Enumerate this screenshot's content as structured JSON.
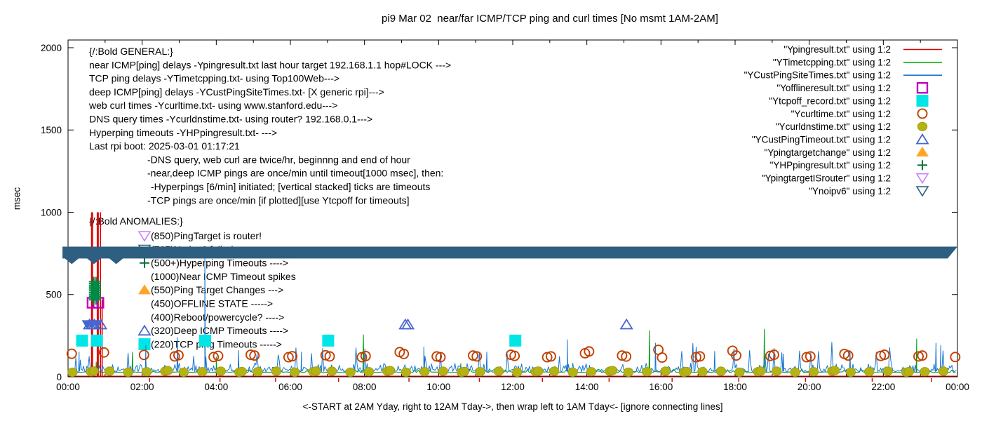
{
  "title": "pi9 Mar 02  near/far ICMP/TCP ping and curl times [No msmt 1AM-2AM]",
  "axes": {
    "ylabel": "msec",
    "xlabel": "<-START at 2AM Yday, right to 12AM Tday->, then wrap left to 1AM Tday<- [ignore connecting lines]",
    "yticks": [
      0,
      500,
      1000,
      1500,
      2000
    ],
    "xticks": [
      "00:00",
      "02:00",
      "04:00",
      "06:00",
      "08:00",
      "10:00",
      "12:00",
      "14:00",
      "16:00",
      "18:00",
      "20:00",
      "22:00",
      "00:00"
    ],
    "ylim": [
      0,
      2000
    ],
    "x_hours": [
      0,
      24
    ]
  },
  "legend": [
    {
      "label": "\"Ypingresult.txt\" using 1:2",
      "glyph": "line",
      "color": "#e00000"
    },
    {
      "label": "\"YTimetcpping.txt\" using 1:2",
      "glyph": "line",
      "color": "#00b400"
    },
    {
      "label": "\"YCustPingSiteTimes.txt\" using 1:2",
      "glyph": "line",
      "color": "#1874d2"
    },
    {
      "label": "\"Yofflineresult.txt\" using 1:2",
      "glyph": "square_open",
      "color": "#c000c0"
    },
    {
      "label": "\"Ytcpoff_record.txt\" using 1:2",
      "glyph": "square_fill",
      "color": "#00e5e5"
    },
    {
      "label": "\"Ycurltime.txt\" using 1:2",
      "glyph": "circle_open",
      "color": "#c04000"
    },
    {
      "label": "\"Ycurldnstime.txt\" using 1:2",
      "glyph": "circle_fill",
      "color": "#b3b314"
    },
    {
      "label": "\"YCustPingTimeout.txt\" using 1:2",
      "glyph": "tri_up_open",
      "color": "#4666d0"
    },
    {
      "label": "\"Ypingtargetchange\" using 1:2",
      "glyph": "tri_up_fill",
      "color": "#ffa526"
    },
    {
      "label": "\"YHPpingresult.txt\" using 1:2",
      "glyph": "plus",
      "color": "#007040"
    },
    {
      "label": "\"YpingtargetISrouter\" using 1:2",
      "glyph": "tri_down_open",
      "color": "#cc80ff"
    },
    {
      "label": "\"Ynoipv6\" using 1:2",
      "glyph": "tri_down_open",
      "color": "#2e5f80"
    }
  ],
  "annotations": {
    "general": [
      {
        "x": 127,
        "text": "{/:Bold GENERAL:}"
      },
      {
        "x": 127,
        "text": "near ICMP[ping] delays -Ypingresult.txt last hour target 192.168.1.1 hop#LOCK --->"
      },
      {
        "x": 127,
        "text": "TCP ping delays -YTimetcpping.txt- using Top100Web--->"
      },
      {
        "x": 127,
        "text": "deep ICMP[ping] delays -YCustPingSiteTimes.txt- [X generic rpi]--->"
      },
      {
        "x": 127,
        "text": "web curl times -Ycurltime.txt- using www.stanford.edu--->"
      },
      {
        "x": 127,
        "text": "DNS query times -Ycurldnstime.txt- using router? 192.168.0.1--->"
      },
      {
        "x": 127,
        "text": "Hyperping timeouts -YHPpingresult.txt- --->"
      },
      {
        "x": 127,
        "text": "Last rpi boot: 2025-03-01 01:17:21"
      },
      {
        "x": 210,
        "text": "-DNS query, web curl are twice/hr, beginnng and end of hour"
      },
      {
        "x": 210,
        "text": "-near,deep ICMP pings are once/min until timeout[1000 msec], then:"
      },
      {
        "x": 215,
        "text": "-Hyperpings [6/min] initiated; [vertical stacked] ticks are timeouts"
      },
      {
        "x": 210,
        "text": "-TCP pings are once/min [if plotted][use Ytcpoff for timeouts]"
      }
    ],
    "anomalies_header": "{/:Bold ANOMALIES:}",
    "anomalies": [
      {
        "marker": "tri_down_open",
        "color": "#cc80ff",
        "text": "(850)PingTarget is router!"
      },
      {
        "marker": "tri_down_open",
        "color": "#2e5f80",
        "text": "(765)No ipv6 failed --->",
        "occluded": true
      },
      {
        "marker": "plus",
        "color": "#007040",
        "text": "(500+)Hyperping Timeouts ---->"
      },
      {
        "marker": null,
        "color": null,
        "text": "(1000)Near ICMP Timeout spikes"
      },
      {
        "marker": "tri_up_fill",
        "color": "#ffa526",
        "text": "(550)Ping Target Changes --->"
      },
      {
        "marker": null,
        "color": null,
        "text": "(450)OFFLINE STATE ----->"
      },
      {
        "marker": null,
        "color": null,
        "text": "(400)Reboot/powercycle? ---->"
      },
      {
        "marker": "tri_up_open",
        "color": "#4666d0",
        "text": "(320)Deep ICMP Timeouts ---->"
      },
      {
        "marker": "square_fill",
        "color": "#00e5e5",
        "text": "(220)TCP ping Timeouts ----->"
      }
    ]
  },
  "chart_data": {
    "type": "line",
    "note": "time-series msec vs hour-of-day; noise traces regenerated from seeds; spikes/markers are measured points",
    "series": [
      {
        "name": "near_icmp_ping",
        "color": "#e00000",
        "baseline_msec": 4,
        "impulses_to_msec": [
          [
            0.635,
            1000
          ],
          [
            0.66,
            1000
          ],
          [
            0.79,
            1000
          ],
          [
            0.815,
            1000
          ],
          [
            0.875,
            1000
          ],
          [
            0.92,
            470
          ]
        ],
        "bottom_ticks_t": [
          2.2,
          4.1,
          5.6,
          7.3,
          9.2,
          11.1,
          12.8,
          14.6,
          16.3,
          18.1,
          19.9,
          21.7,
          23.3
        ]
      },
      {
        "name": "tcp_ping",
        "color": "#00a014",
        "baseline_msec": 26,
        "noise_seed": 7,
        "noise_step_h": 0.05,
        "spikes": [
          [
            0.76,
            90
          ],
          [
            1.74,
            150
          ],
          [
            4.0,
            120
          ],
          [
            7.97,
            255
          ],
          [
            10.6,
            80
          ],
          [
            15.69,
            280
          ],
          [
            18.79,
            290
          ],
          [
            22.9,
            230
          ]
        ]
      },
      {
        "name": "deep_icmp_ping",
        "color": "#1874d2",
        "baseline_msec": 32,
        "noise_seed": 42,
        "noise_step_h": 0.03,
        "spikes": [
          [
            0.3,
            150
          ],
          [
            2.1,
            190
          ],
          [
            2.95,
            240
          ],
          [
            3.69,
            757
          ],
          [
            4.6,
            160
          ],
          [
            6.3,
            150
          ],
          [
            9.6,
            180
          ],
          [
            11.3,
            150
          ],
          [
            13.47,
            225
          ],
          [
            15.85,
            205
          ],
          [
            17.45,
            155
          ],
          [
            19.3,
            140
          ],
          [
            21.1,
            160
          ],
          [
            23.42,
            205
          ],
          [
            23.55,
            190
          ]
        ]
      }
    ],
    "markers": {
      "curl_times_circles": {
        "color": "#c04000",
        "points": [
          [
            0.1,
            140
          ],
          [
            0.97,
            148
          ],
          [
            2.05,
            133
          ],
          [
            2.88,
            124
          ],
          [
            2.98,
            131
          ],
          [
            3.93,
            120
          ],
          [
            4.05,
            127
          ],
          [
            4.93,
            134
          ],
          [
            5.03,
            129
          ],
          [
            5.95,
            119
          ],
          [
            6.05,
            125
          ],
          [
            6.95,
            131
          ],
          [
            7.06,
            124
          ],
          [
            7.93,
            119
          ],
          [
            8.03,
            126
          ],
          [
            8.95,
            150
          ],
          [
            9.06,
            139
          ],
          [
            9.95,
            124
          ],
          [
            10.05,
            119
          ],
          [
            10.93,
            129
          ],
          [
            11.03,
            124
          ],
          [
            11.95,
            134
          ],
          [
            12.05,
            127
          ],
          [
            12.93,
            119
          ],
          [
            13.03,
            124
          ],
          [
            13.95,
            143
          ],
          [
            14.06,
            154
          ],
          [
            14.95,
            129
          ],
          [
            15.06,
            123
          ],
          [
            15.93,
            164
          ],
          [
            16.03,
            117
          ],
          [
            16.95,
            119
          ],
          [
            17.05,
            124
          ],
          [
            17.93,
            158
          ],
          [
            18.03,
            129
          ],
          [
            18.95,
            127
          ],
          [
            19.05,
            134
          ],
          [
            19.93,
            119
          ],
          [
            20.03,
            124
          ],
          [
            20.95,
            139
          ],
          [
            21.05,
            129
          ],
          [
            21.93,
            127
          ],
          [
            22.03,
            134
          ],
          [
            22.95,
            124
          ],
          [
            23.05,
            129
          ],
          [
            23.94,
            120
          ]
        ]
      },
      "dns_times_dots": {
        "color": "#b3b314",
        "start_t": 0.12,
        "step_h": 0.5,
        "base_msec": 28
      },
      "tcp_timeout_squares": {
        "color": "#00e5e5",
        "points": [
          [
            0.38,
            220
          ],
          [
            0.78,
            220
          ],
          [
            3.7,
            220
          ],
          [
            7.02,
            220
          ],
          [
            12.07,
            220
          ]
        ]
      },
      "offline_squares": {
        "color": "#c000c0",
        "points": [
          [
            0.66,
            450
          ],
          [
            0.82,
            450
          ]
        ]
      },
      "deep_timeout_triangles": {
        "color": "#4666d0",
        "points": [
          [
            0.52,
            318
          ],
          [
            0.58,
            318
          ],
          [
            0.645,
            318
          ],
          [
            0.71,
            318
          ],
          [
            0.78,
            318
          ],
          [
            0.88,
            318
          ],
          [
            9.1,
            318
          ],
          [
            9.17,
            318
          ],
          [
            15.07,
            318
          ]
        ]
      },
      "hyperping_stack": {
        "color": "#007040",
        "block_color": "#006838",
        "cols_t": [
          0.695,
          0.755
        ],
        "vmin": 468,
        "vmax": 578,
        "vstep": 11
      },
      "noipv6_band": {
        "color": "#2e5f80",
        "v_center": 755,
        "v_half": 36,
        "t_from": -0.15,
        "t_to": 24,
        "bump_ts": [
          0.1,
          0.7,
          1.3
        ]
      }
    }
  }
}
